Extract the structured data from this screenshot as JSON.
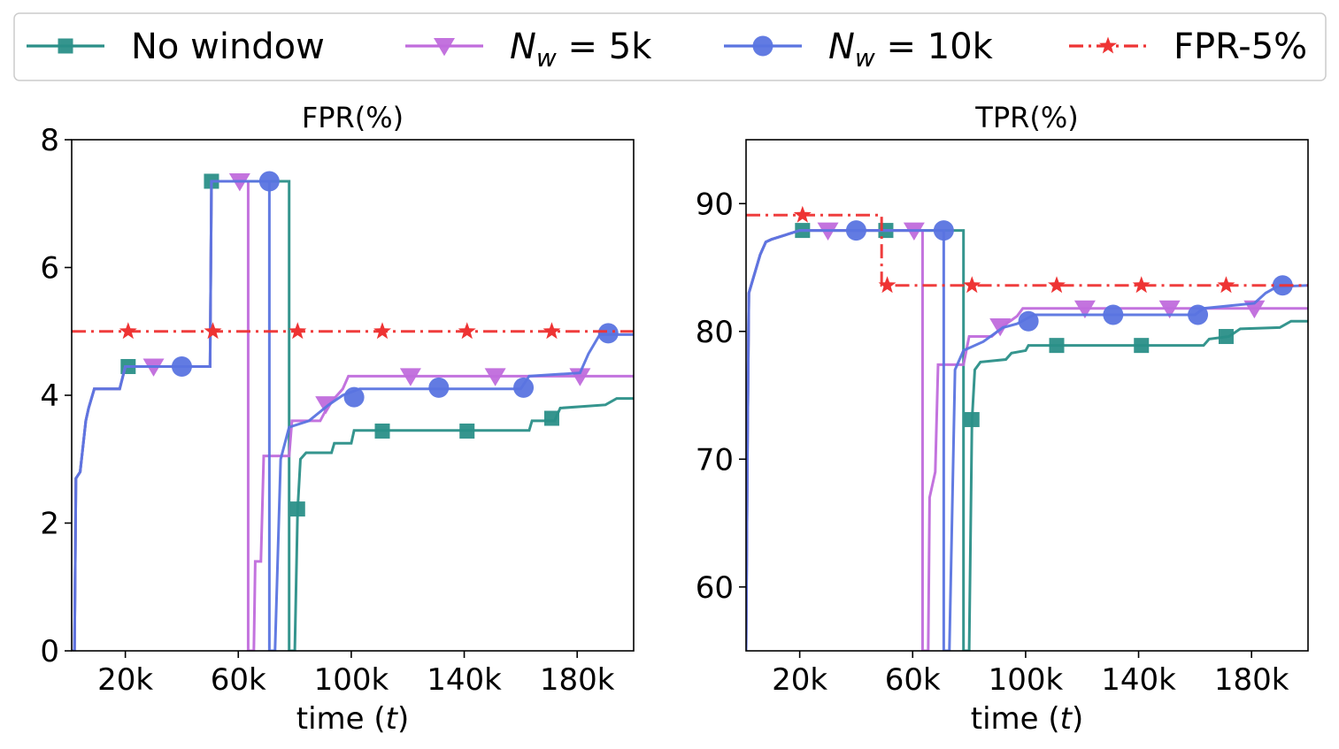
{
  "legend": [
    {
      "label": "No window",
      "label_main": "No window",
      "label_sub": "",
      "label_tail": "",
      "color": "#2a8f88",
      "marker": "square",
      "dash": "solid"
    },
    {
      "label": "N_w = 5k",
      "label_main": "N",
      "label_sub": "w",
      "label_tail": " = 5k",
      "color": "#c06cdc",
      "marker": "triangle-down",
      "dash": "solid"
    },
    {
      "label": "N_w = 10k",
      "label_main": "N",
      "label_sub": "w",
      "label_tail": " = 10k",
      "color": "#5a74e0",
      "marker": "circle",
      "dash": "solid"
    },
    {
      "label": "FPR-5%",
      "label_main": "FPR-5%",
      "label_sub": "",
      "label_tail": "",
      "color": "#ee3333",
      "marker": "star",
      "dash": "dashdot"
    }
  ],
  "chart_data": [
    {
      "type": "line",
      "title": "FPR(%)",
      "xlabel": "time (t)",
      "xlabel_main": "time (",
      "xlabel_var": "t",
      "xlabel_close": ")",
      "ylabel": "",
      "xlim": [
        1000,
        200000
      ],
      "ylim": [
        0,
        8
      ],
      "xticks": [
        20000,
        60000,
        100000,
        140000,
        180000
      ],
      "xtick_labels": [
        "20k",
        "60k",
        "100k",
        "140k",
        "180k"
      ],
      "yticks": [
        0,
        2,
        4,
        6,
        8
      ],
      "ytick_labels": [
        "0",
        "2",
        "4",
        "6",
        "8"
      ],
      "series": [
        {
          "name": "No window",
          "points": [
            [
              1000,
              0
            ],
            [
              2000,
              0
            ],
            [
              2500,
              2.7
            ],
            [
              4000,
              2.8
            ],
            [
              5000,
              3.2
            ],
            [
              6000,
              3.6
            ],
            [
              7000,
              3.8
            ],
            [
              9000,
              4.1
            ],
            [
              18000,
              4.1
            ],
            [
              20000,
              4.45
            ],
            [
              50000,
              4.45
            ],
            [
              50500,
              7.35
            ],
            [
              78000,
              7.35
            ],
            [
              78000,
              0
            ],
            [
              80000,
              0
            ],
            [
              81000,
              2.2
            ],
            [
              82000,
              3.0
            ],
            [
              84000,
              3.1
            ],
            [
              93000,
              3.1
            ],
            [
              94000,
              3.25
            ],
            [
              100000,
              3.25
            ],
            [
              101000,
              3.45
            ],
            [
              163000,
              3.45
            ],
            [
              164000,
              3.6
            ],
            [
              172000,
              3.6
            ],
            [
              174000,
              3.8
            ],
            [
              190000,
              3.85
            ],
            [
              194000,
              3.95
            ],
            [
              200000,
              3.95
            ]
          ],
          "markers": [
            [
              21000,
              4.45
            ],
            [
              50500,
              7.35
            ],
            [
              81000,
              2.22
            ],
            [
              111000,
              3.44
            ],
            [
              141000,
              3.44
            ],
            [
              171000,
              3.64
            ]
          ]
        },
        {
          "name": "N_w = 5k",
          "points": [
            [
              1000,
              0
            ],
            [
              2000,
              0
            ],
            [
              2500,
              2.7
            ],
            [
              4000,
              2.8
            ],
            [
              5000,
              3.2
            ],
            [
              6000,
              3.6
            ],
            [
              7000,
              3.8
            ],
            [
              9000,
              4.1
            ],
            [
              18000,
              4.1
            ],
            [
              20000,
              4.45
            ],
            [
              50000,
              4.45
            ],
            [
              50500,
              7.35
            ],
            [
              63500,
              7.35
            ],
            [
              63500,
              0
            ],
            [
              65500,
              0
            ],
            [
              66000,
              1.4
            ],
            [
              68000,
              1.4
            ],
            [
              69000,
              3.05
            ],
            [
              78000,
              3.05
            ],
            [
              79000,
              3.6
            ],
            [
              89000,
              3.6
            ],
            [
              92000,
              3.85
            ],
            [
              97000,
              4.1
            ],
            [
              99000,
              4.3
            ],
            [
              200000,
              4.3
            ]
          ],
          "markers": [
            [
              30000,
              4.45
            ],
            [
              60500,
              7.35
            ],
            [
              91000,
              3.86
            ],
            [
              121000,
              4.3
            ],
            [
              151000,
              4.3
            ],
            [
              181000,
              4.3
            ]
          ]
        },
        {
          "name": "N_w = 10k",
          "points": [
            [
              1000,
              0
            ],
            [
              2000,
              0
            ],
            [
              2500,
              2.7
            ],
            [
              4000,
              2.8
            ],
            [
              5000,
              3.2
            ],
            [
              6000,
              3.6
            ],
            [
              7000,
              3.8
            ],
            [
              9000,
              4.1
            ],
            [
              18000,
              4.1
            ],
            [
              20000,
              4.45
            ],
            [
              50000,
              4.45
            ],
            [
              50500,
              7.35
            ],
            [
              71000,
              7.35
            ],
            [
              71000,
              0
            ],
            [
              73000,
              0
            ],
            [
              75000,
              3.0
            ],
            [
              78000,
              3.5
            ],
            [
              85000,
              3.6
            ],
            [
              92000,
              3.85
            ],
            [
              97000,
              4.0
            ],
            [
              103000,
              4.1
            ],
            [
              160000,
              4.1
            ],
            [
              163000,
              4.3
            ],
            [
              181000,
              4.35
            ],
            [
              184000,
              4.65
            ],
            [
              188000,
              4.95
            ],
            [
              200000,
              4.95
            ]
          ],
          "markers": [
            [
              40000,
              4.45
            ],
            [
              71000,
              7.35
            ],
            [
              101000,
              3.97
            ],
            [
              131000,
              4.12
            ],
            [
              161000,
              4.12
            ],
            [
              191000,
              4.97
            ]
          ]
        },
        {
          "name": "FPR-5%",
          "points": [
            [
              1000,
              5.0
            ],
            [
              200000,
              5.0
            ]
          ],
          "markers": [
            [
              21000,
              5.0
            ],
            [
              51000,
              5.0
            ],
            [
              81000,
              5.0
            ],
            [
              111000,
              5.0
            ],
            [
              141000,
              5.0
            ],
            [
              171000,
              5.0
            ]
          ]
        }
      ]
    },
    {
      "type": "line",
      "title": "TPR(%)",
      "xlabel": "time (t)",
      "xlabel_main": "time (",
      "xlabel_var": "t",
      "xlabel_close": ")",
      "ylabel": "",
      "xlim": [
        1000,
        200000
      ],
      "ylim": [
        55,
        95
      ],
      "xticks": [
        20000,
        60000,
        100000,
        140000,
        180000
      ],
      "xtick_labels": [
        "20k",
        "60k",
        "100k",
        "140k",
        "180k"
      ],
      "yticks": [
        60,
        70,
        80,
        90
      ],
      "ytick_labels": [
        "60",
        "70",
        "80",
        "90"
      ],
      "series": [
        {
          "name": "No window",
          "points": [
            [
              1000,
              55
            ],
            [
              1500,
              71
            ],
            [
              2000,
              83
            ],
            [
              4000,
              84.5
            ],
            [
              6000,
              86
            ],
            [
              8000,
              87
            ],
            [
              10000,
              87.2
            ],
            [
              20000,
              87.9
            ],
            [
              78000,
              87.9
            ],
            [
              78000,
              55
            ],
            [
              80000,
              55
            ],
            [
              81000,
              73
            ],
            [
              82000,
              77
            ],
            [
              84000,
              77.6
            ],
            [
              93000,
              77.8
            ],
            [
              95000,
              78.3
            ],
            [
              100000,
              78.5
            ],
            [
              101000,
              78.9
            ],
            [
              163000,
              78.9
            ],
            [
              165000,
              79.4
            ],
            [
              172000,
              79.6
            ],
            [
              176000,
              80.2
            ],
            [
              190000,
              80.3
            ],
            [
              194000,
              80.8
            ],
            [
              200000,
              80.8
            ]
          ],
          "markers": [
            [
              21000,
              87.9
            ],
            [
              50500,
              87.9
            ],
            [
              81000,
              73.1
            ],
            [
              111000,
              78.9
            ],
            [
              141000,
              78.9
            ],
            [
              171000,
              79.6
            ]
          ]
        },
        {
          "name": "N_w = 5k",
          "points": [
            [
              1000,
              55
            ],
            [
              1500,
              71
            ],
            [
              2000,
              83
            ],
            [
              4000,
              84.5
            ],
            [
              6000,
              86
            ],
            [
              8000,
              87
            ],
            [
              10000,
              87.2
            ],
            [
              20000,
              87.9
            ],
            [
              63500,
              87.9
            ],
            [
              63500,
              55
            ],
            [
              65500,
              55
            ],
            [
              66000,
              67
            ],
            [
              68000,
              69
            ],
            [
              69000,
              77.4
            ],
            [
              78000,
              77.4
            ],
            [
              80000,
              79.6
            ],
            [
              88000,
              79.6
            ],
            [
              92000,
              80.4
            ],
            [
              97000,
              81.2
            ],
            [
              99000,
              81.8
            ],
            [
              200000,
              81.8
            ]
          ],
          "markers": [
            [
              30000,
              87.9
            ],
            [
              60500,
              87.9
            ],
            [
              91000,
              80.4
            ],
            [
              121000,
              81.8
            ],
            [
              151000,
              81.8
            ],
            [
              181000,
              81.8
            ]
          ]
        },
        {
          "name": "N_w = 10k",
          "points": [
            [
              1000,
              55
            ],
            [
              1500,
              71
            ],
            [
              2000,
              83
            ],
            [
              4000,
              84.5
            ],
            [
              6000,
              86
            ],
            [
              8000,
              87
            ],
            [
              10000,
              87.2
            ],
            [
              20000,
              87.9
            ],
            [
              71000,
              87.9
            ],
            [
              71000,
              55
            ],
            [
              73000,
              55
            ],
            [
              75000,
              77
            ],
            [
              78000,
              78.5
            ],
            [
              85000,
              79.2
            ],
            [
              92000,
              80.3
            ],
            [
              97000,
              80.6
            ],
            [
              103000,
              81.3
            ],
            [
              160000,
              81.3
            ],
            [
              163000,
              81.8
            ],
            [
              181000,
              82.2
            ],
            [
              185000,
              83.0
            ],
            [
              189000,
              83.5
            ],
            [
              200000,
              83.6
            ]
          ],
          "markers": [
            [
              40000,
              87.9
            ],
            [
              71000,
              87.9
            ],
            [
              101000,
              80.8
            ],
            [
              131000,
              81.3
            ],
            [
              161000,
              81.3
            ],
            [
              191000,
              83.6
            ]
          ]
        },
        {
          "name": "FPR-5%",
          "points": [
            [
              1000,
              89.1
            ],
            [
              49000,
              89.1
            ],
            [
              49000,
              83.6
            ],
            [
              200000,
              83.6
            ]
          ],
          "markers": [
            [
              21000,
              89.1
            ],
            [
              51000,
              83.6
            ],
            [
              81000,
              83.6
            ],
            [
              111000,
              83.6
            ],
            [
              141000,
              83.6
            ],
            [
              171000,
              83.6
            ]
          ]
        }
      ]
    }
  ]
}
